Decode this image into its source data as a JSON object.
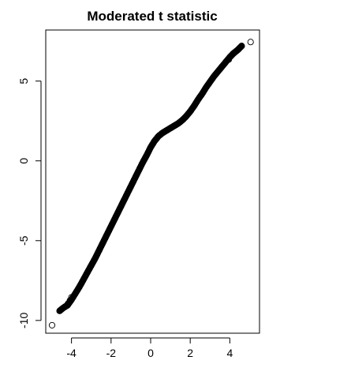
{
  "chart_data": {
    "type": "scatter",
    "title": "Moderated t statistic",
    "xlabel": "",
    "ylabel": "",
    "xlim": [
      -5.3,
      5.5
    ],
    "ylim": [
      -10.8,
      8.2
    ],
    "x_ticks": [
      -4,
      -2,
      0,
      2,
      4
    ],
    "y_ticks": [
      -10,
      -5,
      0,
      5
    ],
    "x_tick_labels": [
      "-4",
      "-2",
      "0",
      "2",
      "4"
    ],
    "y_tick_labels": [
      "-10",
      "-5",
      "0",
      "5"
    ],
    "grid": false,
    "marker": "open-circle",
    "color": "#000000",
    "series": [
      {
        "curve_x": [
          -4.9,
          -4.6,
          -4.4,
          -4.2,
          -4.0,
          -3.8,
          -3.6,
          -3.4,
          -3.2,
          -3.0,
          -2.8,
          -2.6,
          -2.4,
          -2.2,
          -2.0,
          -1.8,
          -1.6,
          -1.4,
          -1.2,
          -1.0,
          -0.8,
          -0.6,
          -0.4,
          -0.2,
          0.0,
          0.2,
          0.4,
          0.6,
          0.8,
          1.0,
          1.2,
          1.4,
          1.6,
          1.8,
          2.0,
          2.2,
          2.4,
          2.6,
          2.8,
          3.0,
          3.2,
          3.4,
          3.6,
          3.8,
          4.0,
          4.2,
          4.4,
          4.6,
          4.8,
          5.05
        ],
        "curve_y": [
          -10.3,
          -9.4,
          -9.2,
          -9.05,
          -8.7,
          -8.3,
          -7.9,
          -7.45,
          -7.0,
          -6.55,
          -6.1,
          -5.6,
          -5.1,
          -4.6,
          -4.1,
          -3.6,
          -3.1,
          -2.6,
          -2.1,
          -1.6,
          -1.1,
          -0.6,
          -0.1,
          0.35,
          0.85,
          1.25,
          1.55,
          1.75,
          1.9,
          2.05,
          2.2,
          2.35,
          2.55,
          2.8,
          3.1,
          3.45,
          3.85,
          4.2,
          4.6,
          4.95,
          5.3,
          5.6,
          5.9,
          6.2,
          6.5,
          6.75,
          6.95,
          7.2,
          7.3,
          7.5
        ],
        "outliers": [
          {
            "x": -4.98,
            "y": -10.3
          },
          {
            "x": -4.6,
            "y": -9.4
          },
          {
            "x": -4.4,
            "y": -9.2
          },
          {
            "x": -4.28,
            "y": -9.1
          },
          {
            "x": -4.18,
            "y": -8.95
          },
          {
            "x": -4.08,
            "y": -8.75
          },
          {
            "x": -4.0,
            "y": -8.55
          },
          {
            "x": 3.95,
            "y": 6.35
          },
          {
            "x": 4.05,
            "y": 6.55
          },
          {
            "x": 4.15,
            "y": 6.7
          },
          {
            "x": 4.25,
            "y": 6.8
          },
          {
            "x": 4.6,
            "y": 7.2
          },
          {
            "x": 5.05,
            "y": 7.45
          }
        ]
      }
    ]
  }
}
